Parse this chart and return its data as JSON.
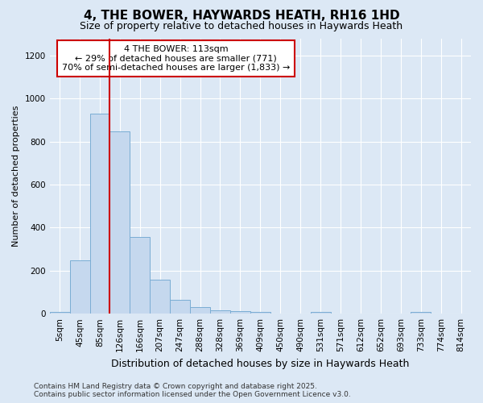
{
  "title": "4, THE BOWER, HAYWARDS HEATH, RH16 1HD",
  "subtitle": "Size of property relative to detached houses in Haywards Heath",
  "xlabel": "Distribution of detached houses by size in Haywards Heath",
  "ylabel": "Number of detached properties",
  "categories": [
    "5sqm",
    "45sqm",
    "85sqm",
    "126sqm",
    "166sqm",
    "207sqm",
    "247sqm",
    "288sqm",
    "328sqm",
    "369sqm",
    "409sqm",
    "450sqm",
    "490sqm",
    "531sqm",
    "571sqm",
    "612sqm",
    "652sqm",
    "693sqm",
    "733sqm",
    "774sqm",
    "814sqm"
  ],
  "values": [
    8,
    248,
    930,
    848,
    358,
    158,
    65,
    30,
    15,
    13,
    8,
    0,
    0,
    8,
    0,
    0,
    0,
    0,
    8,
    0,
    0
  ],
  "bar_color": "#c5d8ee",
  "bar_edgecolor": "#7aadd4",
  "vline_color": "#cc0000",
  "vline_x_index": 2.5,
  "annotation_text": "4 THE BOWER: 113sqm\n← 29% of detached houses are smaller (771)\n70% of semi-detached houses are larger (1,833) →",
  "annotation_box_facecolor": "#ffffff",
  "annotation_box_edgecolor": "#cc0000",
  "ylim": [
    0,
    1280
  ],
  "yticks": [
    0,
    200,
    400,
    600,
    800,
    1000,
    1200
  ],
  "footer": "Contains HM Land Registry data © Crown copyright and database right 2025.\nContains public sector information licensed under the Open Government Licence v3.0.",
  "bg_color": "#dce8f5",
  "grid_color": "#ffffff",
  "title_fontsize": 11,
  "subtitle_fontsize": 9,
  "xlabel_fontsize": 9,
  "ylabel_fontsize": 8,
  "tick_fontsize": 7.5,
  "annot_fontsize": 8,
  "footer_fontsize": 6.5
}
